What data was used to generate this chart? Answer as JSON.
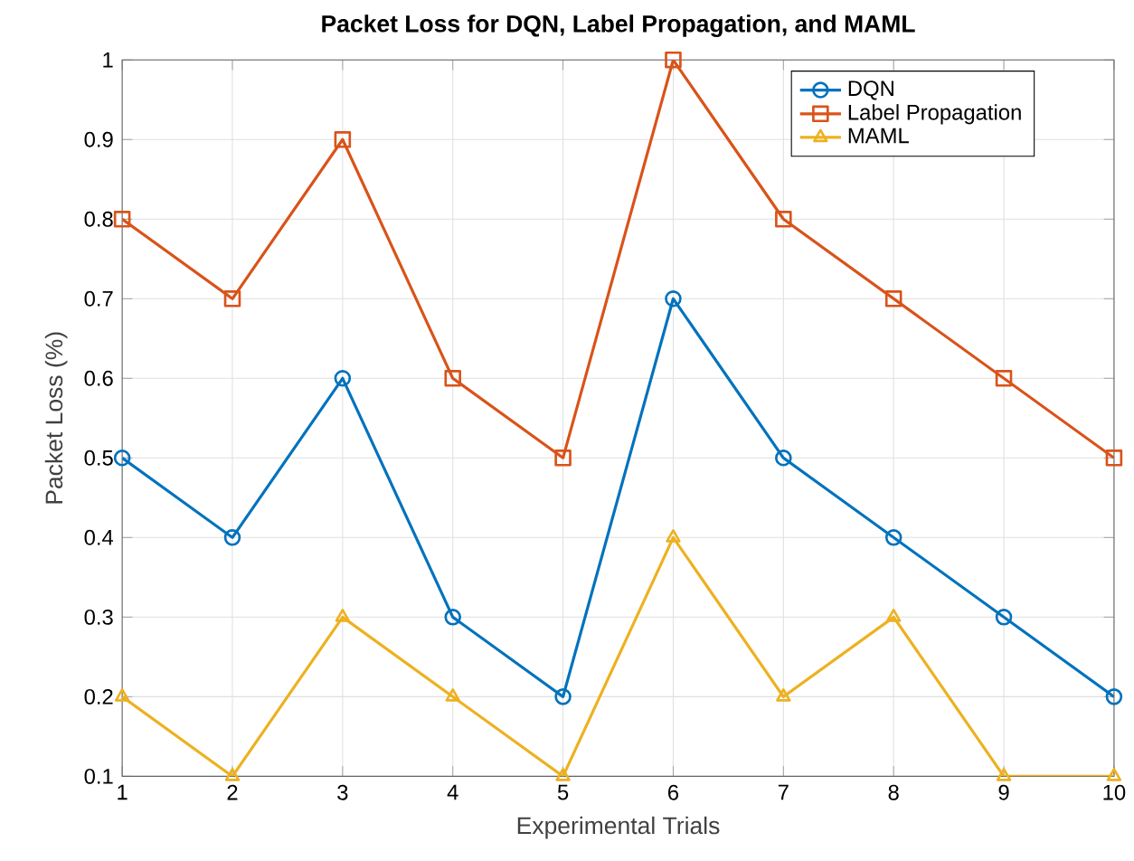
{
  "chart_data": {
    "type": "line",
    "title": "Packet Loss for DQN, Label Propagation, and MAML",
    "xlabel": "Experimental Trials",
    "ylabel": "Packet Loss (%)",
    "x": [
      1,
      2,
      3,
      4,
      5,
      6,
      7,
      8,
      9,
      10
    ],
    "series": [
      {
        "name": "DQN",
        "color": "#0072bd",
        "marker": "circle",
        "values": [
          0.5,
          0.4,
          0.6,
          0.3,
          0.2,
          0.7,
          0.5,
          0.4,
          0.3,
          0.2
        ]
      },
      {
        "name": "Label Propagation",
        "color": "#d95319",
        "marker": "square",
        "values": [
          0.8,
          0.7,
          0.9,
          0.6,
          0.5,
          1.0,
          0.8,
          0.7,
          0.6,
          0.5
        ]
      },
      {
        "name": "MAML",
        "color": "#edb120",
        "marker": "triangle",
        "values": [
          0.2,
          0.1,
          0.3,
          0.2,
          0.1,
          0.4,
          0.2,
          0.3,
          0.1,
          0.1
        ]
      }
    ],
    "xlim": [
      1,
      10
    ],
    "ylim": [
      0.1,
      1
    ],
    "xticks": [
      1,
      2,
      3,
      4,
      5,
      6,
      7,
      8,
      9,
      10
    ],
    "yticks": [
      0.1,
      0.2,
      0.3,
      0.4,
      0.5,
      0.6,
      0.7,
      0.8,
      0.9,
      1
    ],
    "grid": true,
    "legend": "top right",
    "line_style": "solid"
  }
}
